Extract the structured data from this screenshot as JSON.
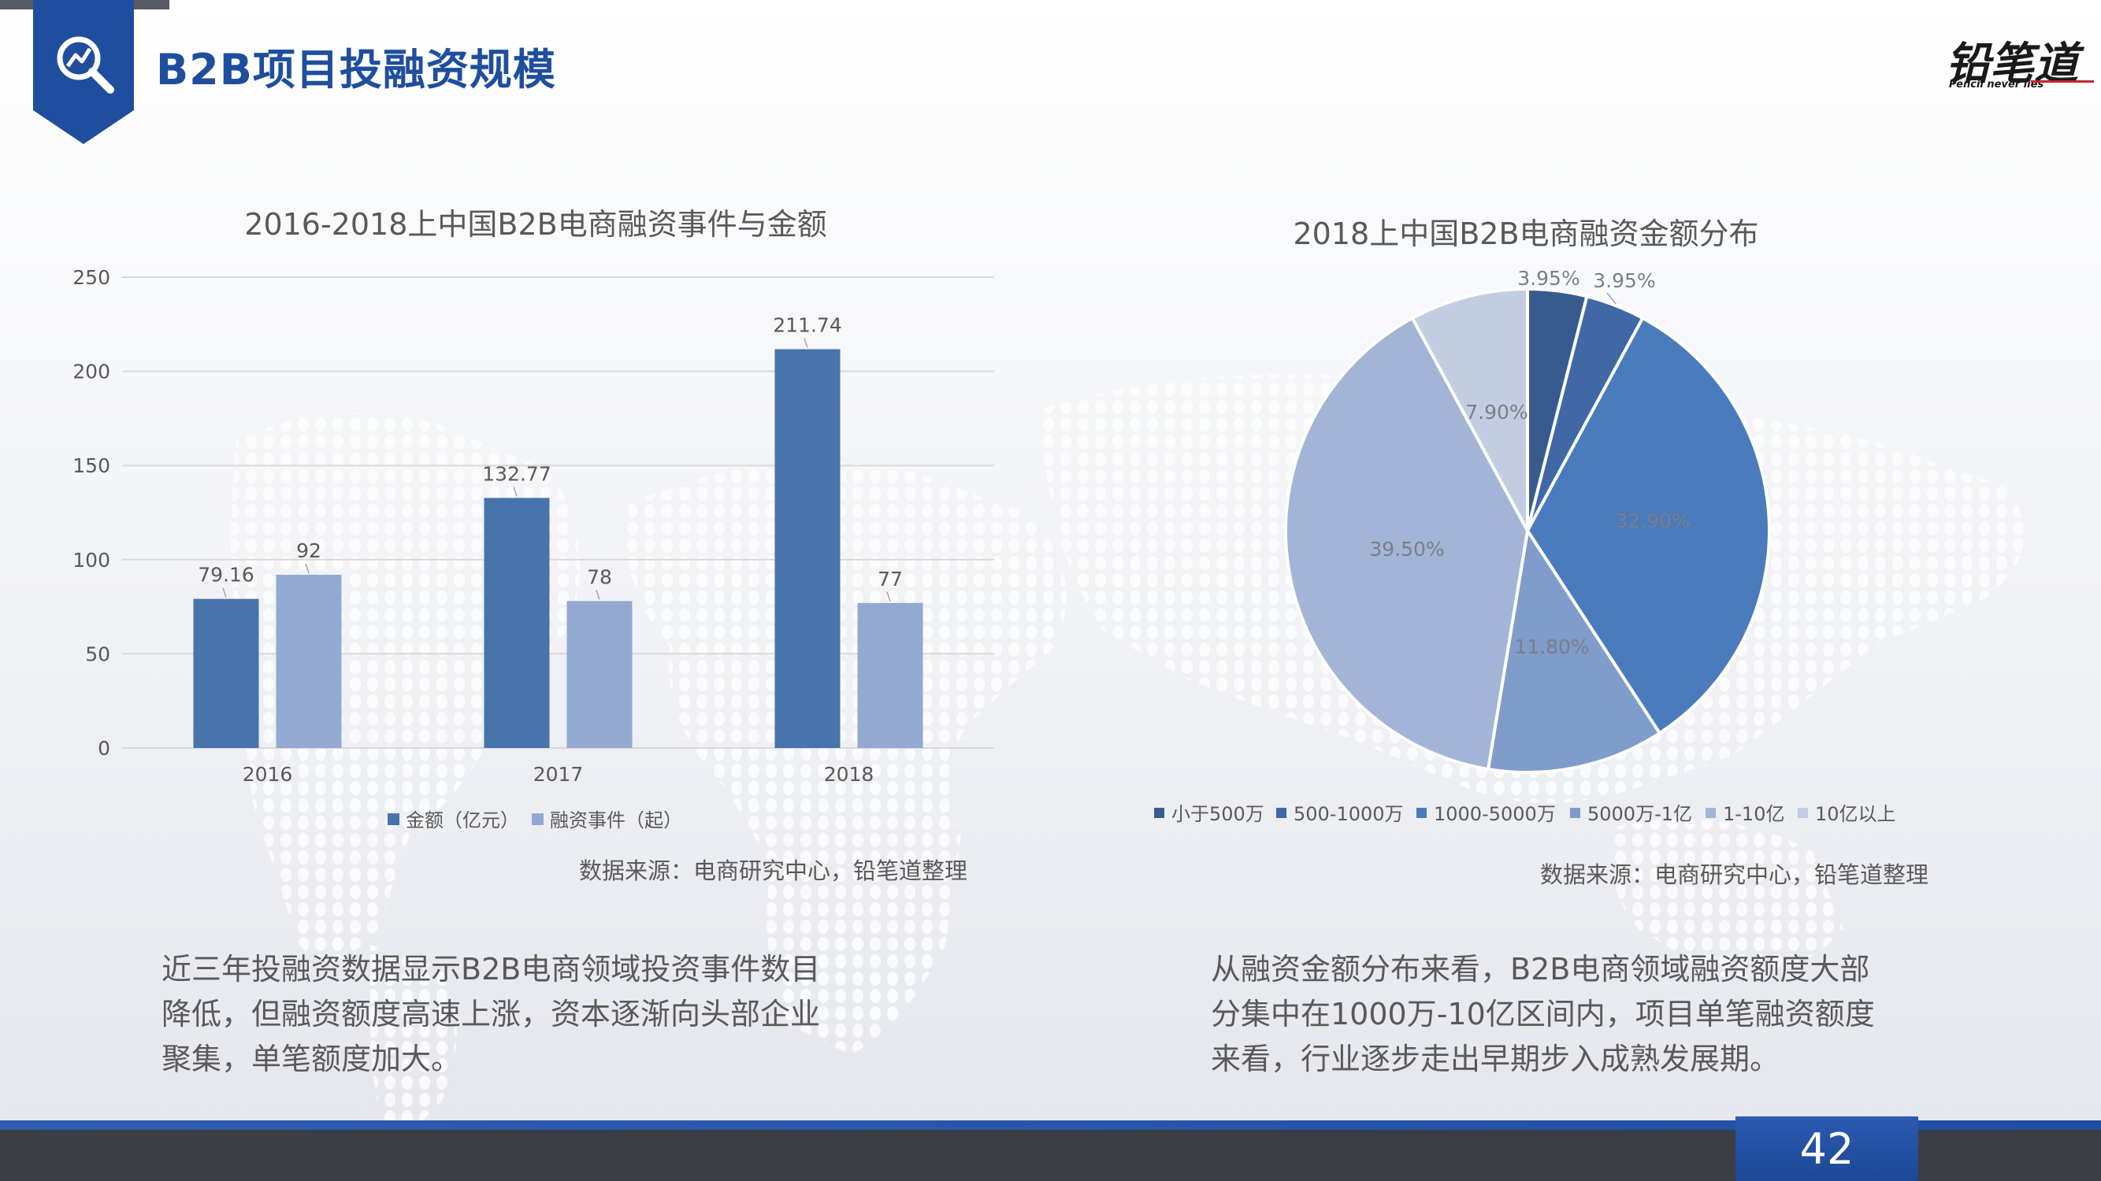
{
  "page": {
    "title": "B2B项目投融资规模",
    "page_number": "42",
    "logo_text": "铅笔道",
    "logo_tagline": "Pencil never lies"
  },
  "colors": {
    "brand_blue": "#1f4e9e",
    "bar_amount": "#4674ab",
    "bar_events": "#93a9d2",
    "pie": [
      "#385b8f",
      "#3f68a4",
      "#4a7bbd",
      "#7f9ccb",
      "#a2b5d6",
      "#c3cde2"
    ]
  },
  "left_chart": {
    "source": "数据来源：电商研究中心，铅笔道整理",
    "description": [
      "近三年投融资数据显示B2B电商领域投资事件数目",
      "降低，但融资额度高速上涨，资本逐渐向头部企业",
      "聚集，单笔额度加大。"
    ]
  },
  "right_chart": {
    "source": "数据来源：电商研究中心，铅笔道整理",
    "description": [
      "从融资金额分布来看，B2B电商领域融资额度大部",
      "分集中在1000万-10亿区间内，项目单笔融资额度",
      "来看，行业逐步走出早期步入成熟发展期。"
    ]
  },
  "chart_data": [
    {
      "type": "bar",
      "title": "2016-2018上中国B2B电商融资事件与金额",
      "categories": [
        "2016",
        "2017",
        "2018"
      ],
      "series": [
        {
          "name": "金额（亿元）",
          "values": [
            79.16,
            132.77,
            211.74
          ],
          "labels": [
            "79.16",
            "132.77",
            "211.74"
          ]
        },
        {
          "name": "融资事件（起）",
          "values": [
            92,
            78,
            77
          ],
          "labels": [
            "92",
            "78",
            "77"
          ]
        }
      ],
      "ylim": [
        0,
        250
      ],
      "yticks": [
        "0",
        "50",
        "100",
        "150",
        "200",
        "250"
      ],
      "grid": true,
      "legend_position": "bottom"
    },
    {
      "type": "pie",
      "title": "2018上中国B2B电商融资金额分布",
      "categories": [
        "小于500万",
        "500-1000万",
        "1000-5000万",
        "5000万-1亿",
        "1-10亿",
        "10亿以上"
      ],
      "values": [
        3.95,
        3.95,
        32.9,
        11.8,
        39.5,
        7.9
      ],
      "labels": [
        "3.95%",
        "3.95%",
        "32.90%",
        "11.80%",
        "39.50%",
        "7.90%"
      ],
      "legend_position": "bottom"
    }
  ]
}
